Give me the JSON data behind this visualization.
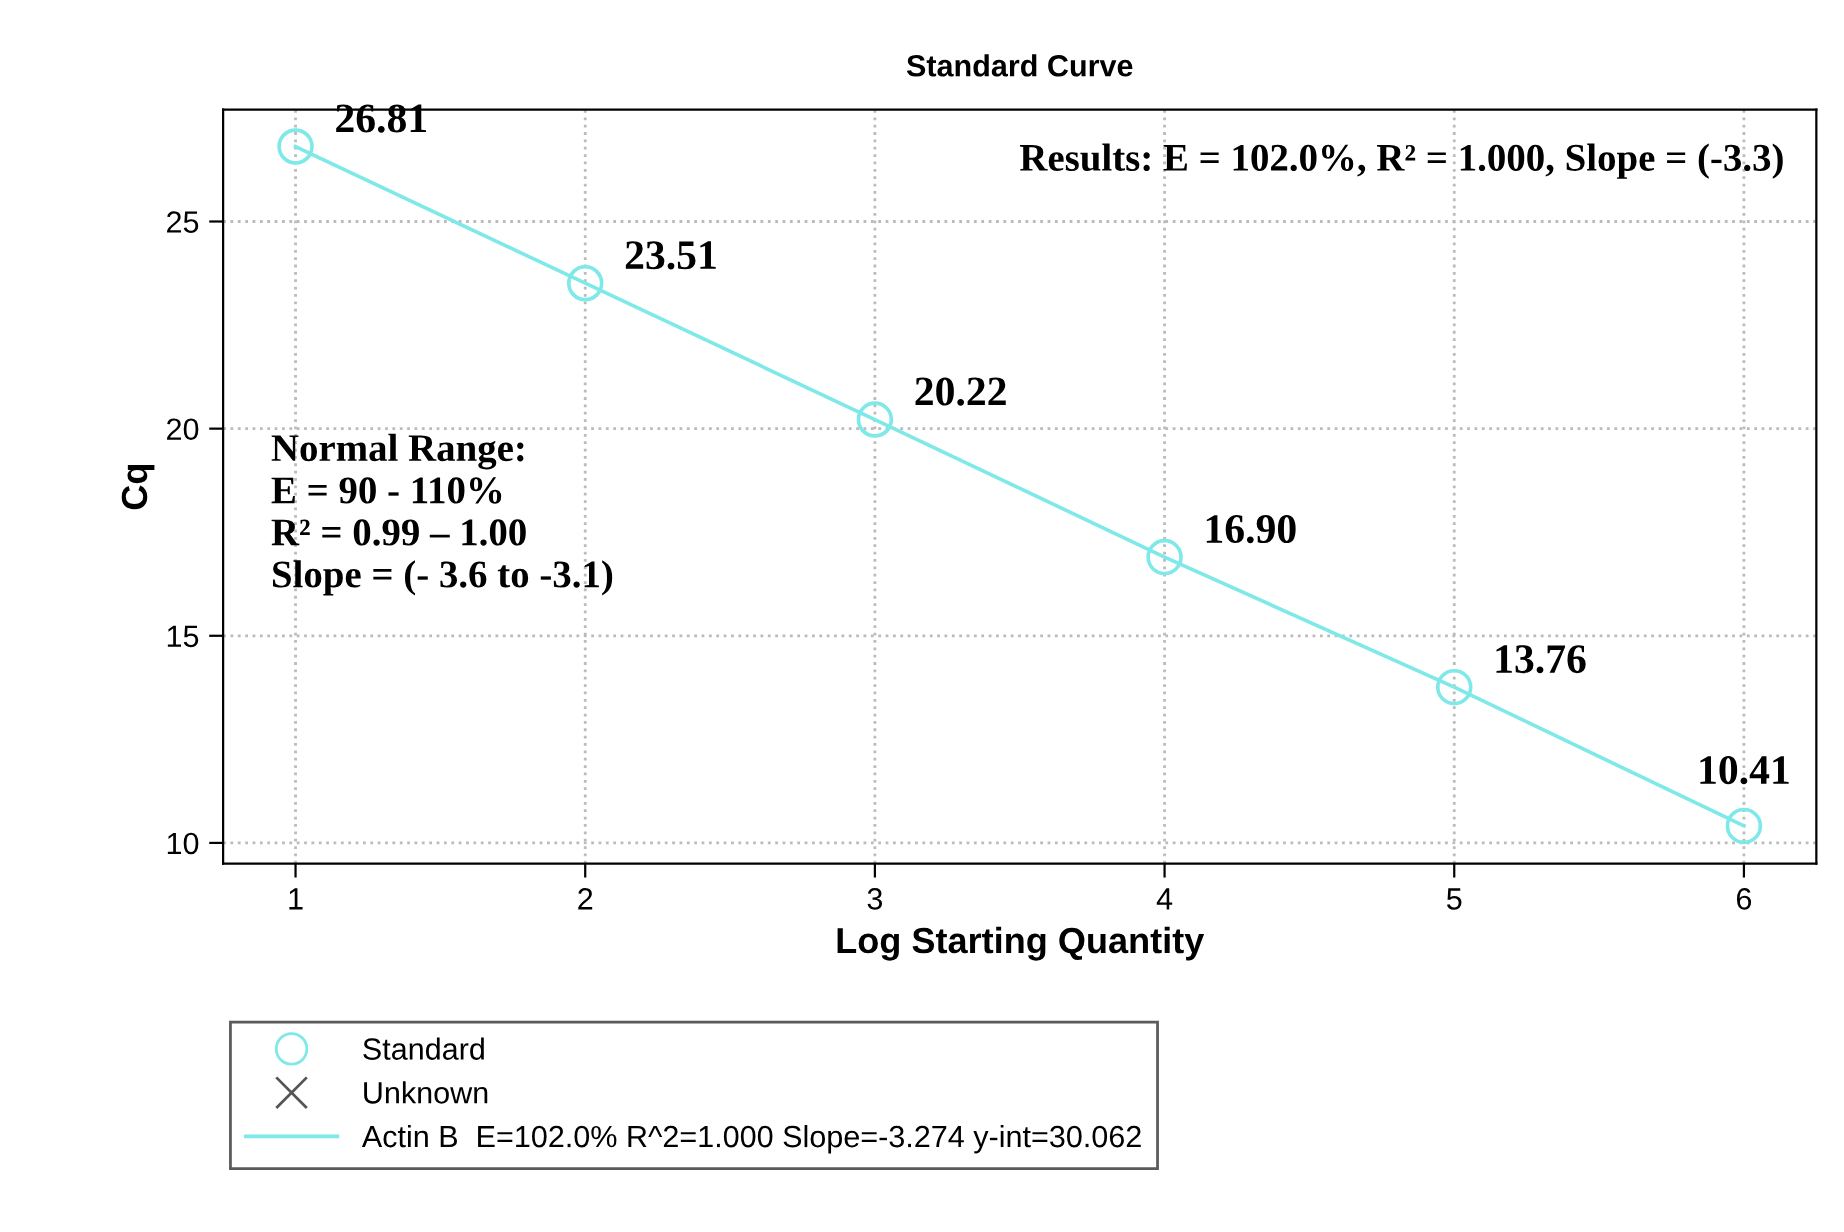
{
  "chart_data": {
    "type": "scatter",
    "title": "Standard Curve",
    "xlabel": "Log Starting Quantity",
    "ylabel": "Cq",
    "x": [
      1,
      2,
      3,
      4,
      5,
      6
    ],
    "series": [
      {
        "name": "Standard",
        "marker": "circle",
        "color": "#7fe8e8",
        "values": [
          26.81,
          23.51,
          20.22,
          16.9,
          13.76,
          10.41
        ],
        "value_labels": [
          "26.81",
          "23.51",
          "20.22",
          "16.90",
          "13.76",
          "10.41"
        ]
      },
      {
        "name": "Unknown",
        "marker": "cross",
        "color": "#555555",
        "values": [
          null,
          null,
          null,
          null,
          null,
          null
        ]
      },
      {
        "name": "Actin B  E=102.0% R^2=1.000 Slope=-3.274 y-int=30.062",
        "type": "line",
        "marker": "none",
        "color": "#7fe8e8",
        "values": [
          26.81,
          23.51,
          20.22,
          16.9,
          13.76,
          10.41
        ]
      }
    ],
    "xlim": [
      0.75,
      6.25
    ],
    "xticks": [
      1,
      2,
      3,
      4,
      5,
      6
    ],
    "ylim": [
      9.5,
      27.7
    ],
    "yticks": [
      10,
      15,
      20,
      25
    ],
    "grid": true,
    "legend": "bottom",
    "annotations": [
      "Results: E = 102.0%, R² = 1.000, Slope = (-3.3)",
      "Normal Range:\nE = 90 - 110%\nR² = 0.99 – 1.00\nSlope = (- 3.6 to -3.1)"
    ]
  }
}
